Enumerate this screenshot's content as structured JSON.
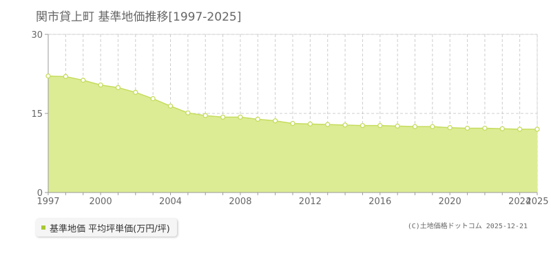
{
  "title": "関市貸上町 基準地価推移[1997-2025]",
  "legend_label": "基準地価 平均坪単価(万円/坪)",
  "copyright": "(C)土地価格ドットコム 2025-12-21",
  "colors": {
    "fill": "#dcec94",
    "line": "#c5dc5c",
    "point_fill": "#ffffff",
    "swatch": "#a8c832"
  },
  "chart_data": {
    "type": "area",
    "title": "関市貸上町 基準地価推移[1997-2025]",
    "xlabel": "",
    "ylabel": "",
    "xlim": [
      1997,
      2025
    ],
    "ylim": [
      0,
      30
    ],
    "y_ticks": [
      0,
      15,
      30
    ],
    "x_tick_labels": [
      1997,
      2000,
      2004,
      2008,
      2012,
      2016,
      2020,
      2024,
      2025
    ],
    "grid": true,
    "series": [
      {
        "name": "基準地価 平均坪単価(万円/坪)",
        "x": [
          1997,
          1998,
          1999,
          2000,
          2001,
          2002,
          2003,
          2004,
          2005,
          2006,
          2007,
          2008,
          2009,
          2010,
          2011,
          2012,
          2013,
          2014,
          2015,
          2016,
          2017,
          2018,
          2019,
          2020,
          2021,
          2022,
          2023,
          2024,
          2025
        ],
        "values": [
          22.1,
          22.0,
          21.3,
          20.4,
          19.9,
          19.0,
          17.8,
          16.4,
          15.1,
          14.6,
          14.3,
          14.3,
          13.9,
          13.6,
          13.1,
          13.0,
          12.9,
          12.8,
          12.7,
          12.7,
          12.6,
          12.5,
          12.5,
          12.3,
          12.2,
          12.2,
          12.1,
          12.0,
          12.0
        ]
      }
    ]
  }
}
